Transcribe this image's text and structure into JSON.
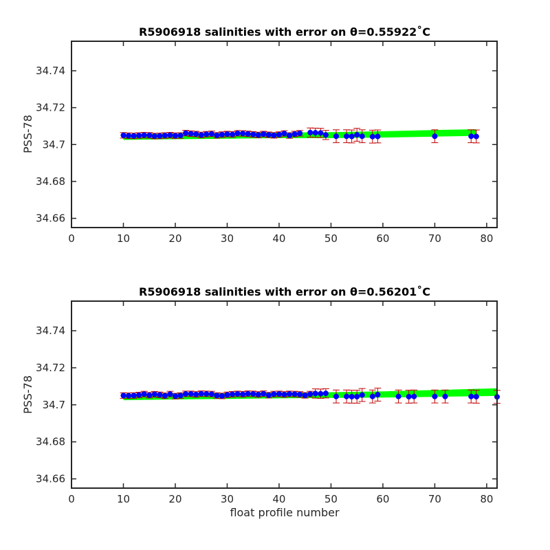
{
  "chart_data": [
    {
      "type": "scatter",
      "title": "R5906918 salinities with error on θ=0.55922˚C",
      "xlabel": "",
      "ylabel": "PSS-78",
      "xlim": [
        0,
        82
      ],
      "ylim": [
        34.655,
        34.756
      ],
      "xticks": [
        "0",
        "10",
        "20",
        "30",
        "40",
        "50",
        "60",
        "70",
        "80"
      ],
      "yticks": [
        "34.66",
        "34.68",
        "34.7",
        "34.72",
        "34.74"
      ],
      "colors": {
        "points": "#0000ff",
        "errorbars": "#c00000",
        "band": "#00ff00"
      },
      "band": {
        "x": [
          10,
          20,
          30,
          40,
          50,
          60,
          70,
          78
        ],
        "lower": [
          34.7025,
          34.7029,
          34.7032,
          34.7035,
          34.7035,
          34.7038,
          34.7043,
          34.7047
        ],
        "upper": [
          34.7055,
          34.7059,
          34.7062,
          34.7065,
          34.7067,
          34.7072,
          34.7079,
          34.7083
        ]
      },
      "series": [
        {
          "x": [
            10,
            11,
            12,
            13,
            14,
            15,
            16,
            17,
            18,
            19,
            20,
            21,
            22,
            23,
            24,
            25,
            26,
            27,
            28,
            29,
            30,
            31,
            32,
            33,
            34,
            35,
            36,
            37,
            38,
            39,
            40,
            41,
            42,
            43,
            44,
            46,
            47,
            48,
            49,
            51,
            53,
            54,
            55,
            56,
            58,
            59,
            70,
            77,
            78
          ],
          "y": [
            34.705,
            34.7048,
            34.7047,
            34.7049,
            34.7051,
            34.705,
            34.7046,
            34.7047,
            34.7049,
            34.7051,
            34.7048,
            34.7049,
            34.7062,
            34.7059,
            34.7057,
            34.7052,
            34.7056,
            34.7058,
            34.705,
            34.7054,
            34.7057,
            34.7055,
            34.7061,
            34.706,
            34.7058,
            34.7055,
            34.7052,
            34.7057,
            34.7053,
            34.705,
            34.7054,
            34.706,
            34.7049,
            34.7057,
            34.7061,
            34.7065,
            34.7064,
            34.7063,
            34.7052,
            34.7045,
            34.7045,
            34.7044,
            34.7053,
            34.7045,
            34.7043,
            34.7044,
            34.7045,
            34.7045,
            34.7044
          ],
          "err": [
            0.0015,
            0.0015,
            0.0015,
            0.0015,
            0.0015,
            0.0015,
            0.0015,
            0.0015,
            0.0015,
            0.0015,
            0.0015,
            0.0015,
            0.0015,
            0.0015,
            0.0015,
            0.0015,
            0.0015,
            0.0015,
            0.0015,
            0.0015,
            0.0015,
            0.0015,
            0.0015,
            0.0015,
            0.0015,
            0.0015,
            0.0015,
            0.0015,
            0.0015,
            0.0015,
            0.0015,
            0.0015,
            0.0015,
            0.0015,
            0.0015,
            0.0025,
            0.0025,
            0.0025,
            0.0025,
            0.0035,
            0.0035,
            0.0035,
            0.0035,
            0.0035,
            0.0035,
            0.0035,
            0.0035,
            0.0035,
            0.0035
          ]
        }
      ]
    },
    {
      "type": "scatter",
      "title": "R5906918 salinities with error on θ=0.56201˚C",
      "xlabel": "float profile number",
      "ylabel": "PSS-78",
      "xlim": [
        0,
        82
      ],
      "ylim": [
        34.655,
        34.756
      ],
      "xticks": [
        "0",
        "10",
        "20",
        "30",
        "40",
        "50",
        "60",
        "70",
        "80"
      ],
      "yticks": [
        "34.66",
        "34.68",
        "34.7",
        "34.72",
        "34.74"
      ],
      "colors": {
        "points": "#0000ff",
        "errorbars": "#c00000",
        "band": "#00ff00"
      },
      "band": {
        "x": [
          10,
          20,
          30,
          40,
          50,
          60,
          70,
          82
        ],
        "lower": [
          34.7025,
          34.7029,
          34.7032,
          34.7035,
          34.7037,
          34.7039,
          34.7043,
          34.7048
        ],
        "upper": [
          34.7057,
          34.7061,
          34.7064,
          34.7066,
          34.7068,
          34.7073,
          34.708,
          34.7089
        ]
      },
      "series": [
        {
          "x": [
            10,
            11,
            12,
            13,
            14,
            15,
            16,
            17,
            18,
            19,
            20,
            21,
            22,
            23,
            24,
            25,
            26,
            27,
            28,
            29,
            30,
            31,
            32,
            33,
            34,
            35,
            36,
            37,
            38,
            39,
            40,
            41,
            42,
            43,
            44,
            45,
            46,
            47,
            48,
            49,
            51,
            53,
            54,
            55,
            56,
            58,
            59,
            63,
            65,
            66,
            70,
            72,
            77,
            78,
            82
          ],
          "y": [
            34.705,
            34.7049,
            34.705,
            34.7053,
            34.7058,
            34.7052,
            34.7057,
            34.7054,
            34.7049,
            34.7058,
            34.7047,
            34.705,
            34.7059,
            34.7059,
            34.7056,
            34.706,
            34.7059,
            34.7058,
            34.705,
            34.7048,
            34.7054,
            34.7057,
            34.7059,
            34.7057,
            34.706,
            34.7059,
            34.7056,
            34.706,
            34.7052,
            34.7058,
            34.7059,
            34.7056,
            34.7059,
            34.7058,
            34.7056,
            34.7051,
            34.7058,
            34.7061,
            34.706,
            34.7062,
            34.7045,
            34.7045,
            34.7044,
            34.7044,
            34.7053,
            34.7045,
            34.7055,
            34.7045,
            34.7044,
            34.7045,
            34.7045,
            34.7045,
            34.7045,
            34.7044,
            34.7043
          ],
          "err": [
            0.0015,
            0.0015,
            0.0015,
            0.0015,
            0.0015,
            0.0015,
            0.0015,
            0.0015,
            0.0015,
            0.0015,
            0.0015,
            0.0015,
            0.0015,
            0.0015,
            0.0015,
            0.0015,
            0.0015,
            0.0015,
            0.0015,
            0.0015,
            0.0015,
            0.0015,
            0.0015,
            0.0015,
            0.0015,
            0.0015,
            0.0015,
            0.0015,
            0.0015,
            0.0015,
            0.0015,
            0.0015,
            0.0015,
            0.0015,
            0.0015,
            0.0015,
            0.0015,
            0.0025,
            0.0025,
            0.0025,
            0.0035,
            0.0035,
            0.0035,
            0.0035,
            0.0035,
            0.0035,
            0.0035,
            0.0035,
            0.0035,
            0.0035,
            0.0035,
            0.0035,
            0.0035,
            0.0035,
            0.0035
          ]
        }
      ]
    }
  ]
}
